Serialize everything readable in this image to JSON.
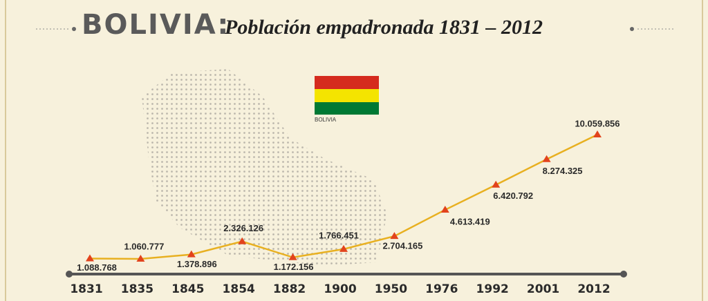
{
  "chart_data": {
    "type": "line",
    "title": "BOLIVIA:",
    "subtitle": "Población empadronada 1831 – 2012",
    "flag_label": "BOLIVIA",
    "categories": [
      "1831",
      "1835",
      "1845",
      "1854",
      "1882",
      "1900",
      "1950",
      "1976",
      "1992",
      "2001",
      "2012"
    ],
    "values": [
      1088768,
      1060777,
      1378896,
      2326126,
      1172156,
      1766451,
      2704165,
      4613419,
      6420792,
      8274325,
      10059856
    ],
    "value_labels": [
      "1.088.768",
      "1.060.777",
      "1.378.896",
      "2.326.126",
      "1.172.156",
      "1.766.451",
      "2.704.165",
      "4.613.419",
      "6.420.792",
      "8.274.325",
      "10.059.856"
    ],
    "color": "#e8b020",
    "marker_color": "#e2431c"
  }
}
